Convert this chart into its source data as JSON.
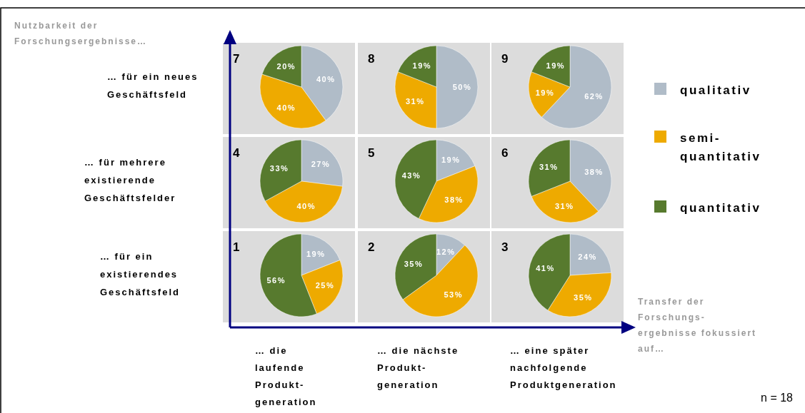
{
  "chart_data": [
    {
      "type": "pie",
      "categories": [
        "qualitativ",
        "semi-quantitativ",
        "quantitativ"
      ],
      "colors": [
        "#b0bcc8",
        "#eeaa00",
        "#577a2e"
      ],
      "legend": "right",
      "series": [
        {
          "name": "7",
          "values": [
            40,
            40,
            20
          ],
          "value_labels": [
            "40%",
            "40%",
            "20%"
          ]
        },
        {
          "name": "8",
          "values": [
            50,
            31,
            19
          ],
          "value_labels": [
            "50%",
            "31%",
            "19%"
          ]
        },
        {
          "name": "9",
          "values": [
            62,
            19,
            19
          ],
          "value_labels": [
            "62%",
            "19%",
            "19%"
          ]
        },
        {
          "name": "4",
          "values": [
            27,
            40,
            33
          ],
          "value_labels": [
            "27%",
            "40%",
            "33%"
          ]
        },
        {
          "name": "5",
          "values": [
            19,
            38,
            43
          ],
          "value_labels": [
            "19%",
            "38%",
            "43%"
          ]
        },
        {
          "name": "6",
          "values": [
            38,
            31,
            31
          ],
          "value_labels": [
            "38%",
            "31%",
            "31%"
          ]
        },
        {
          "name": "1",
          "values": [
            19,
            25,
            56
          ],
          "value_labels": [
            "19%",
            "25%",
            "56%"
          ]
        },
        {
          "name": "2",
          "values": [
            12,
            53,
            35
          ],
          "value_labels": [
            "12%",
            "53%",
            "35%"
          ]
        },
        {
          "name": "3",
          "values": [
            24,
            35,
            41
          ],
          "value_labels": [
            "24%",
            "35%",
            "41%"
          ]
        }
      ]
    },
    {
      "type": "other",
      "xlabel": "Transfer der\nForschungs-\nergebnisse fokussiert\nauf…",
      "ylabel": "Nutzbarkeit der\nForschungsergebnisse…",
      "categories": [
        "… die\nlaufende\nProdukt-\ngeneration",
        "… die nächste\nProdukt-\ngeneration",
        "… eine später\nnachfolgende\nProduktgeneration"
      ],
      "y_categories": [
        "… für ein neues\nGeschäftsfeld",
        "… für mehrere\nexistierende\nGeschäftsfelder",
        "… für ein\nexistierendes\nGeschäftsfeld"
      ],
      "annotations": [
        "n = 18"
      ]
    }
  ]
}
